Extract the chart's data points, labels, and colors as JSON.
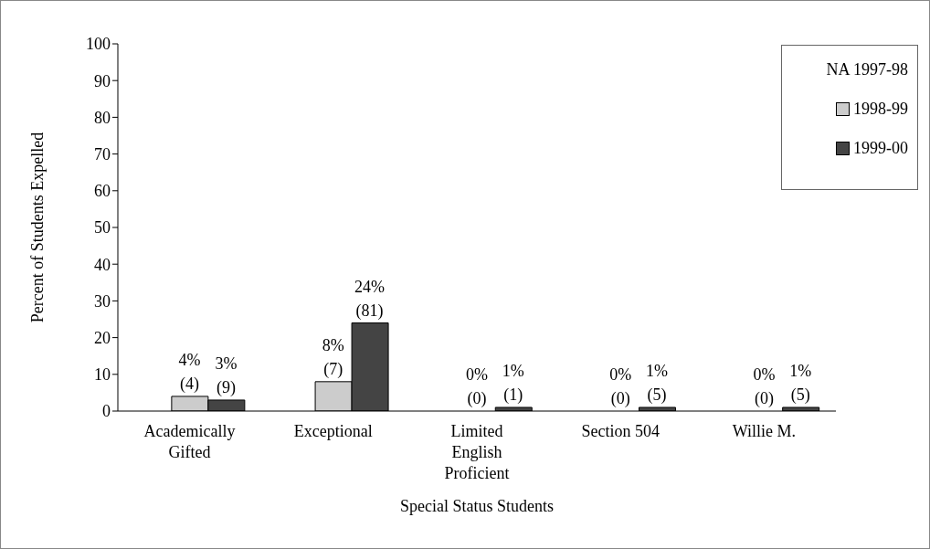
{
  "chart_data": {
    "type": "bar",
    "xlabel": "Special Status Students",
    "ylabel": "Percent of Students Expelled",
    "categories": [
      "Academically Gifted",
      "Exceptional",
      "Limited English Proficient",
      "Section 504",
      "Willie M."
    ],
    "series": [
      {
        "name": "NA 1997-98",
        "values": [
          null,
          null,
          null,
          null,
          null
        ]
      },
      {
        "name": "1998-99",
        "color": "#cccccc",
        "values": [
          4,
          8,
          0,
          0,
          0
        ],
        "value_labels": [
          "4% (4)",
          "8% (7)",
          "0% (0)",
          "0% (0)",
          "0% (0)"
        ]
      },
      {
        "name": "1999-00",
        "color": "#444444",
        "values": [
          3,
          24,
          1,
          1,
          1
        ],
        "value_labels": [
          "3% (9)",
          "24% (81)",
          "1% (1)",
          "1% (5)",
          "1% (5)"
        ]
      }
    ],
    "ylim": [
      0,
      100
    ],
    "yticks": [
      0,
      10,
      20,
      30,
      40,
      50,
      60,
      70,
      80,
      90,
      100
    ],
    "grid": false,
    "legend": "top right"
  }
}
